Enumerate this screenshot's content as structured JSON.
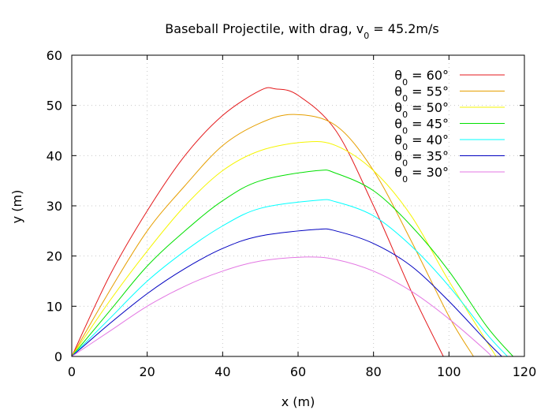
{
  "chart_data": {
    "type": "line",
    "title_main": "Baseball Projectile, with drag, v",
    "title_sub": "0",
    "title_tail": " = 45.2m/s",
    "xlabel": "x (m)",
    "ylabel": "y (m)",
    "xlim": [
      0,
      120
    ],
    "ylim": [
      0,
      60
    ],
    "xticks": [
      "0",
      "20",
      "40",
      "60",
      "80",
      "100",
      "120"
    ],
    "yticks": [
      "0",
      "10",
      "20",
      "30",
      "40",
      "50",
      "60"
    ],
    "grid": true,
    "legend_position": "top-right",
    "legend_prefix": "θ",
    "legend_sub": "0",
    "series": [
      {
        "name": " = 60°",
        "color": "#e41a1c",
        "points": [
          [
            0,
            0
          ],
          [
            10,
            16
          ],
          [
            20,
            29
          ],
          [
            30,
            40
          ],
          [
            40,
            48
          ],
          [
            50,
            53
          ],
          [
            54,
            53.3
          ],
          [
            60,
            52
          ],
          [
            70,
            45
          ],
          [
            80,
            30
          ],
          [
            90,
            13
          ],
          [
            98.5,
            0
          ]
        ]
      },
      {
        "name": " = 55°",
        "color": "#e69f00",
        "points": [
          [
            0,
            0
          ],
          [
            10,
            13
          ],
          [
            20,
            25
          ],
          [
            30,
            34
          ],
          [
            40,
            42
          ],
          [
            50,
            46.5
          ],
          [
            59,
            48.2
          ],
          [
            70,
            46
          ],
          [
            80,
            37
          ],
          [
            90,
            23
          ],
          [
            100,
            8
          ],
          [
            106.5,
            0
          ]
        ]
      },
      {
        "name": " = 50°",
        "color": "#f5f500",
        "points": [
          [
            0,
            0
          ],
          [
            10,
            11
          ],
          [
            20,
            21
          ],
          [
            30,
            30
          ],
          [
            40,
            37
          ],
          [
            50,
            41
          ],
          [
            62,
            42.7
          ],
          [
            70,
            42
          ],
          [
            80,
            37
          ],
          [
            90,
            28
          ],
          [
            100,
            15
          ],
          [
            112.5,
            0
          ]
        ]
      },
      {
        "name": " = 45°",
        "color": "#00e000",
        "points": [
          [
            0,
            0
          ],
          [
            10,
            9
          ],
          [
            20,
            18
          ],
          [
            30,
            25
          ],
          [
            40,
            31
          ],
          [
            50,
            35
          ],
          [
            65,
            37
          ],
          [
            70,
            36.5
          ],
          [
            80,
            33
          ],
          [
            90,
            26
          ],
          [
            100,
            17
          ],
          [
            110,
            6
          ],
          [
            117,
            0
          ]
        ]
      },
      {
        "name": " = 40°",
        "color": "#00ffff",
        "points": [
          [
            0,
            0
          ],
          [
            10,
            7.5
          ],
          [
            20,
            15
          ],
          [
            30,
            21
          ],
          [
            40,
            26
          ],
          [
            50,
            29.5
          ],
          [
            65,
            31.1
          ],
          [
            70,
            30.8
          ],
          [
            80,
            28
          ],
          [
            90,
            22
          ],
          [
            100,
            14
          ],
          [
            110,
            4.5
          ],
          [
            115.5,
            0
          ]
        ]
      },
      {
        "name": " = 35°",
        "color": "#0000c0",
        "points": [
          [
            0,
            0
          ],
          [
            10,
            6.5
          ],
          [
            20,
            12.5
          ],
          [
            30,
            17.5
          ],
          [
            40,
            21.5
          ],
          [
            50,
            24
          ],
          [
            65,
            25.3
          ],
          [
            70,
            25
          ],
          [
            80,
            22.5
          ],
          [
            90,
            18
          ],
          [
            100,
            11
          ],
          [
            110,
            3
          ],
          [
            114,
            0
          ]
        ]
      },
      {
        "name": " = 30°",
        "color": "#e377e3",
        "points": [
          [
            0,
            0
          ],
          [
            10,
            5
          ],
          [
            20,
            10
          ],
          [
            30,
            14
          ],
          [
            40,
            17
          ],
          [
            50,
            19
          ],
          [
            62,
            19.8
          ],
          [
            70,
            19.3
          ],
          [
            80,
            17
          ],
          [
            90,
            13
          ],
          [
            100,
            7.5
          ],
          [
            110,
            1
          ],
          [
            111,
            0
          ]
        ]
      }
    ]
  }
}
